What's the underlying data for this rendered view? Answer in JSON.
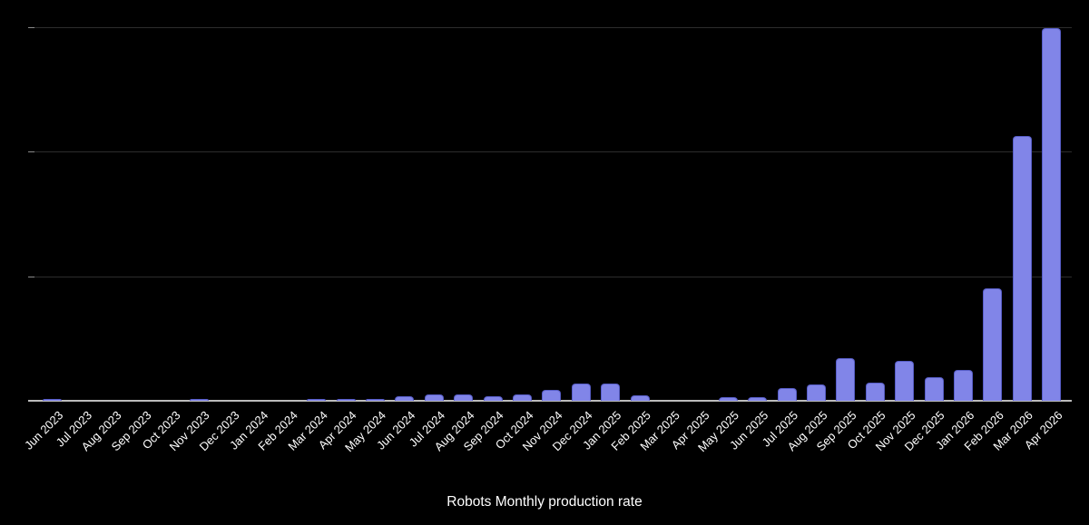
{
  "chart_data": {
    "type": "bar",
    "title": "Robots Monthly production rate",
    "categories": [
      "Jun 2023",
      "Jul 2023",
      "Aug 2023",
      "Sep 2023",
      "Oct 2023",
      "Nov 2023",
      "Dec 2023",
      "Jan 2024",
      "Feb 2024",
      "Mar 2024",
      "Apr 2024",
      "May 2024",
      "Jun 2024",
      "Jul 2024",
      "Aug 2024",
      "Sep 2024",
      "Oct 2024",
      "Nov 2024",
      "Dec 2024",
      "Jan 2025",
      "Feb 2025",
      "Mar 2025",
      "Apr 2025",
      "May 2025",
      "Jun 2025",
      "Jul 2025",
      "Aug 2025",
      "Sep 2025",
      "Oct 2025",
      "Nov 2025",
      "Dec 2025",
      "Jan 2026",
      "Feb 2026",
      "Mar 2026",
      "Apr 2026"
    ],
    "values": [
      15,
      0,
      0,
      0,
      0,
      18,
      0,
      0,
      0,
      15,
      15,
      18,
      36,
      50,
      50,
      36,
      50,
      87,
      140,
      140,
      44,
      0,
      0,
      29,
      29,
      100,
      130,
      340,
      145,
      320,
      190,
      250,
      900,
      2130,
      2990
    ],
    "xlabel": "",
    "ylabel": "",
    "x_label_rotation_deg": 45,
    "legend": "none",
    "y_axis": {
      "labels_visible": false,
      "ylim": [
        0,
        3000
      ],
      "gridlines_at": [
        1000,
        2000,
        3000
      ],
      "note": "y-axis has no visible numeric labels; values estimated in relative units assuming evenly spaced gridlines = 1000 units each (bar heights read from pixels)"
    },
    "colors": {
      "background": "#000000",
      "bar_fill": "#8185e8",
      "bar_border": "#585ec8",
      "gridline": "#2c2c2c",
      "axis_line": "#bcbcbc",
      "tick": "#8a8a8a",
      "label_text": "#ffffff",
      "title_text": "#ffffff"
    }
  }
}
